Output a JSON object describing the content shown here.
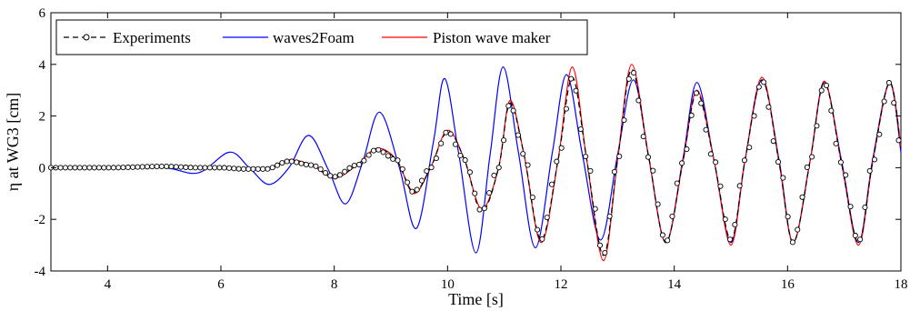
{
  "chart_data": {
    "type": "line",
    "xlabel": "Time [s]",
    "ylabel": "η at WG3 [cm]",
    "xlim": [
      3,
      18
    ],
    "ylim": [
      -4,
      6
    ],
    "xticks": [
      4,
      6,
      8,
      10,
      12,
      14,
      16,
      18
    ],
    "yticks": [
      -4,
      -2,
      0,
      2,
      4,
      6
    ],
    "grid": false,
    "legend_position": "top-left",
    "series": [
      {
        "name": "Experiments",
        "color": "#000000",
        "style": "dashed line with open circle markers",
        "x": [
          3,
          4,
          5,
          5.6,
          6.0,
          6.4,
          6.8,
          7.2,
          7.6,
          8.0,
          8.4,
          8.75,
          9.1,
          9.4,
          9.7,
          10.0,
          10.3,
          10.6,
          10.9,
          11.1,
          11.35,
          11.65,
          11.95,
          12.2,
          12.45,
          12.75,
          13.0,
          13.25,
          13.55,
          13.85,
          14.15,
          14.4,
          14.7,
          15.0,
          15.25,
          15.55,
          15.85,
          16.1,
          16.4,
          16.65,
          16.95,
          17.25,
          17.5,
          17.8,
          18.0
        ],
        "y": [
          0,
          0,
          0.05,
          0,
          0,
          -0.05,
          -0.05,
          0.25,
          0.1,
          -0.35,
          0.1,
          0.7,
          0.3,
          -0.95,
          0.0,
          1.4,
          0.3,
          -1.7,
          0.0,
          2.5,
          0.5,
          -2.8,
          0.3,
          3.5,
          0.4,
          -3.4,
          0.3,
          3.8,
          0.4,
          -2.9,
          0.2,
          2.9,
          0.3,
          -2.8,
          0.3,
          3.4,
          0.2,
          -2.9,
          0.3,
          3.3,
          0.2,
          -2.9,
          0.2,
          3.3,
          0.8
        ]
      },
      {
        "name": "waves2Foam",
        "color": "#0000ff",
        "style": "solid",
        "x": [
          3,
          4,
          5,
          5.6,
          6.15,
          6.5,
          6.85,
          7.2,
          7.55,
          7.9,
          8.2,
          8.5,
          8.8,
          9.15,
          9.45,
          9.75,
          9.95,
          10.2,
          10.5,
          10.75,
          10.98,
          11.25,
          11.55,
          11.85,
          12.1,
          12.38,
          12.7,
          13.0,
          13.28,
          13.55,
          13.85,
          14.15,
          14.4,
          14.7,
          15.0,
          15.25,
          15.55,
          15.85,
          16.1,
          16.4,
          16.65,
          16.95,
          17.25,
          17.5,
          17.8,
          18.0
        ],
        "y": [
          0,
          0,
          0,
          -0.2,
          0.6,
          0.0,
          -0.65,
          0.0,
          1.25,
          -0.1,
          -1.4,
          0.2,
          2.15,
          0.0,
          -2.35,
          1.0,
          3.45,
          0.5,
          -3.3,
          0.5,
          3.9,
          0.6,
          -3.1,
          0.6,
          3.6,
          0.5,
          -2.8,
          0.5,
          3.4,
          0.4,
          -2.9,
          0.3,
          3.3,
          0.3,
          -2.9,
          0.3,
          3.4,
          0.3,
          -2.9,
          0.3,
          3.3,
          0.3,
          -2.9,
          0.3,
          3.3,
          0.6
        ]
      },
      {
        "name": "Piston wave maker",
        "color": "#ff0000",
        "style": "solid",
        "x": [
          3,
          4,
          5,
          5.6,
          6.0,
          6.4,
          6.8,
          7.2,
          7.6,
          8.0,
          8.4,
          8.75,
          9.1,
          9.4,
          9.7,
          10.0,
          10.3,
          10.6,
          10.9,
          11.1,
          11.35,
          11.65,
          11.95,
          12.2,
          12.45,
          12.75,
          13.0,
          13.25,
          13.55,
          13.85,
          14.15,
          14.4,
          14.7,
          15.0,
          15.25,
          15.55,
          15.85,
          16.1,
          16.4,
          16.65,
          16.95,
          17.25,
          17.5,
          17.8,
          18.0
        ],
        "y": [
          0,
          0,
          0.05,
          0,
          0,
          -0.05,
          -0.05,
          0.3,
          0.1,
          -0.4,
          0.1,
          0.75,
          0.3,
          -1.0,
          0.0,
          1.45,
          0.3,
          -1.6,
          0.0,
          2.6,
          0.5,
          -2.9,
          0.3,
          3.9,
          0.4,
          -3.6,
          0.3,
          4.0,
          0.4,
          -2.9,
          0.2,
          3.0,
          0.3,
          -3.0,
          0.3,
          3.5,
          0.2,
          -2.9,
          0.3,
          3.35,
          0.2,
          -3.0,
          0.2,
          3.3,
          0.8
        ]
      }
    ]
  }
}
